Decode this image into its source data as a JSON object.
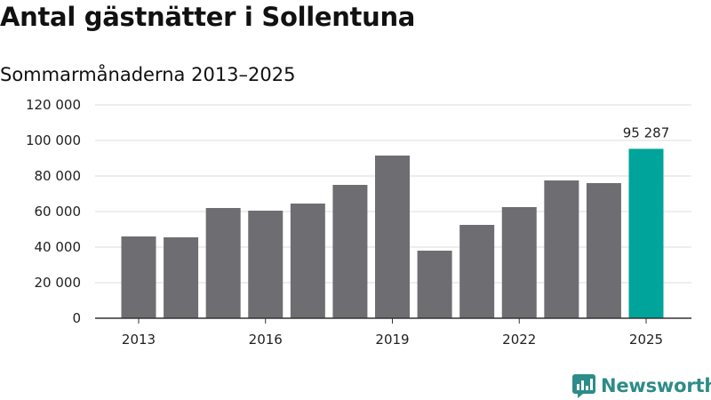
{
  "header": {
    "title": "Antal gästnätter i Sollentuna",
    "subtitle": "Sommarmånaderna 2013–2025"
  },
  "brand": {
    "name": "Newsworthy",
    "icon": "newsworthy-logo-icon",
    "color": "#2d8c87"
  },
  "chart_data": {
    "type": "bar",
    "title": "Antal gästnätter i Sollentuna",
    "subtitle": "Sommarmånaderna 2013–2025",
    "xlabel": "",
    "ylabel": "",
    "categories": [
      "2013",
      "2014",
      "2015",
      "2016",
      "2017",
      "2018",
      "2019",
      "2020",
      "2021",
      "2022",
      "2023",
      "2024",
      "2025"
    ],
    "values": [
      46000,
      45500,
      62000,
      60500,
      64500,
      75000,
      91500,
      38000,
      52500,
      62500,
      77500,
      76000,
      95287
    ],
    "x_tick_labels": [
      "2013",
      "2016",
      "2019",
      "2022",
      "2025"
    ],
    "y_ticks": [
      0,
      20000,
      40000,
      60000,
      80000,
      100000,
      120000
    ],
    "y_tick_labels": [
      "0",
      "20 000",
      "40 000",
      "60 000",
      "80 000",
      "100 000",
      "120 000"
    ],
    "ylim": [
      0,
      120000
    ],
    "grid": true,
    "highlight": {
      "category": "2025",
      "label": "95 287"
    },
    "colors": {
      "bar": "#6e6d72",
      "highlight": "#00a49a",
      "grid": "#dddddd",
      "axis": "#333333"
    }
  }
}
